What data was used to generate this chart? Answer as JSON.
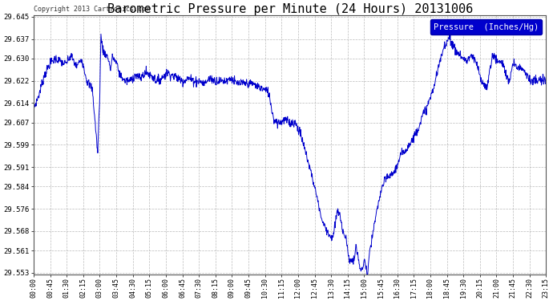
{
  "title": "Barometric Pressure per Minute (24 Hours) 20131006",
  "copyright": "Copyright 2013 Cartronics.com",
  "legend_label": "Pressure  (Inches/Hg)",
  "ylim": [
    29.553,
    29.645
  ],
  "yticks": [
    29.553,
    29.561,
    29.568,
    29.576,
    29.584,
    29.591,
    29.599,
    29.607,
    29.614,
    29.622,
    29.63,
    29.637,
    29.645
  ],
  "xtick_labels": [
    "00:00",
    "00:45",
    "01:30",
    "02:15",
    "03:00",
    "03:45",
    "04:30",
    "05:15",
    "06:00",
    "06:45",
    "07:30",
    "08:15",
    "09:00",
    "09:45",
    "10:30",
    "11:15",
    "12:00",
    "12:45",
    "13:30",
    "14:15",
    "15:00",
    "15:45",
    "16:30",
    "17:15",
    "18:00",
    "18:45",
    "19:30",
    "20:15",
    "21:00",
    "21:45",
    "22:30",
    "23:15"
  ],
  "line_color": "#0000cc",
  "background_color": "#ffffff",
  "grid_color": "#aaaaaa",
  "title_fontsize": 11,
  "legend_bg": "#0000cc",
  "legend_text_color": "#ffffff",
  "waypoints": [
    [
      0.0,
      29.612
    ],
    [
      0.25,
      29.617
    ],
    [
      0.5,
      29.624
    ],
    [
      0.75,
      29.628
    ],
    [
      1.0,
      29.63
    ],
    [
      1.25,
      29.629
    ],
    [
      1.5,
      29.628
    ],
    [
      1.75,
      29.631
    ],
    [
      2.0,
      29.627
    ],
    [
      2.25,
      29.63
    ],
    [
      2.5,
      29.622
    ],
    [
      2.75,
      29.619
    ],
    [
      3.0,
      29.596
    ],
    [
      3.1,
      29.618
    ],
    [
      3.15,
      29.638
    ],
    [
      3.25,
      29.633
    ],
    [
      3.5,
      29.63
    ],
    [
      3.6,
      29.626
    ],
    [
      3.7,
      29.631
    ],
    [
      3.75,
      29.63
    ],
    [
      3.9,
      29.628
    ],
    [
      4.0,
      29.625
    ],
    [
      4.25,
      29.622
    ],
    [
      4.5,
      29.622
    ],
    [
      4.75,
      29.624
    ],
    [
      5.0,
      29.623
    ],
    [
      5.25,
      29.625
    ],
    [
      5.5,
      29.624
    ],
    [
      5.75,
      29.622
    ],
    [
      6.0,
      29.623
    ],
    [
      6.25,
      29.625
    ],
    [
      6.5,
      29.624
    ],
    [
      6.75,
      29.623
    ],
    [
      7.0,
      29.622
    ],
    [
      7.25,
      29.623
    ],
    [
      7.5,
      29.622
    ],
    [
      7.75,
      29.622
    ],
    [
      8.0,
      29.621
    ],
    [
      8.25,
      29.623
    ],
    [
      8.5,
      29.622
    ],
    [
      8.75,
      29.622
    ],
    [
      9.0,
      29.622
    ],
    [
      9.25,
      29.623
    ],
    [
      9.5,
      29.621
    ],
    [
      9.75,
      29.621
    ],
    [
      10.0,
      29.621
    ],
    [
      10.25,
      29.621
    ],
    [
      10.5,
      29.62
    ],
    [
      10.75,
      29.619
    ],
    [
      11.0,
      29.618
    ],
    [
      11.25,
      29.608
    ],
    [
      11.5,
      29.607
    ],
    [
      11.75,
      29.608
    ],
    [
      12.0,
      29.607
    ],
    [
      12.25,
      29.607
    ],
    [
      12.5,
      29.603
    ],
    [
      12.75,
      29.596
    ],
    [
      13.0,
      29.589
    ],
    [
      13.25,
      29.581
    ],
    [
      13.5,
      29.572
    ],
    [
      13.75,
      29.568
    ],
    [
      14.0,
      29.565
    ],
    [
      14.25,
      29.576
    ],
    [
      14.5,
      29.568
    ],
    [
      14.65,
      29.565
    ],
    [
      14.75,
      29.558
    ],
    [
      15.0,
      29.557
    ],
    [
      15.1,
      29.563
    ],
    [
      15.2,
      29.558
    ],
    [
      15.35,
      29.553
    ],
    [
      15.5,
      29.558
    ],
    [
      15.6,
      29.553
    ],
    [
      15.65,
      29.553
    ],
    [
      15.75,
      29.561
    ],
    [
      16.0,
      29.572
    ],
    [
      16.25,
      29.582
    ],
    [
      16.5,
      29.587
    ],
    [
      16.75,
      29.588
    ],
    [
      17.0,
      29.591
    ],
    [
      17.25,
      29.596
    ],
    [
      17.5,
      29.598
    ],
    [
      17.75,
      29.601
    ],
    [
      18.0,
      29.605
    ],
    [
      18.25,
      29.61
    ],
    [
      18.5,
      29.614
    ],
    [
      18.75,
      29.62
    ],
    [
      19.0,
      29.628
    ],
    [
      19.25,
      29.635
    ],
    [
      19.5,
      29.638
    ],
    [
      19.6,
      29.635
    ],
    [
      19.75,
      29.633
    ],
    [
      20.0,
      29.631
    ],
    [
      20.25,
      29.629
    ],
    [
      20.5,
      29.631
    ],
    [
      20.75,
      29.628
    ],
    [
      21.0,
      29.621
    ],
    [
      21.25,
      29.62
    ],
    [
      21.5,
      29.632
    ],
    [
      21.6,
      29.63
    ],
    [
      21.75,
      29.629
    ],
    [
      22.0,
      29.628
    ],
    [
      22.25,
      29.621
    ],
    [
      22.5,
      29.629
    ],
    [
      22.6,
      29.627
    ],
    [
      22.75,
      29.627
    ],
    [
      23.0,
      29.626
    ],
    [
      23.25,
      29.622
    ],
    [
      23.5,
      29.622
    ],
    [
      23.75,
      29.622
    ],
    [
      24.0,
      29.622
    ]
  ]
}
